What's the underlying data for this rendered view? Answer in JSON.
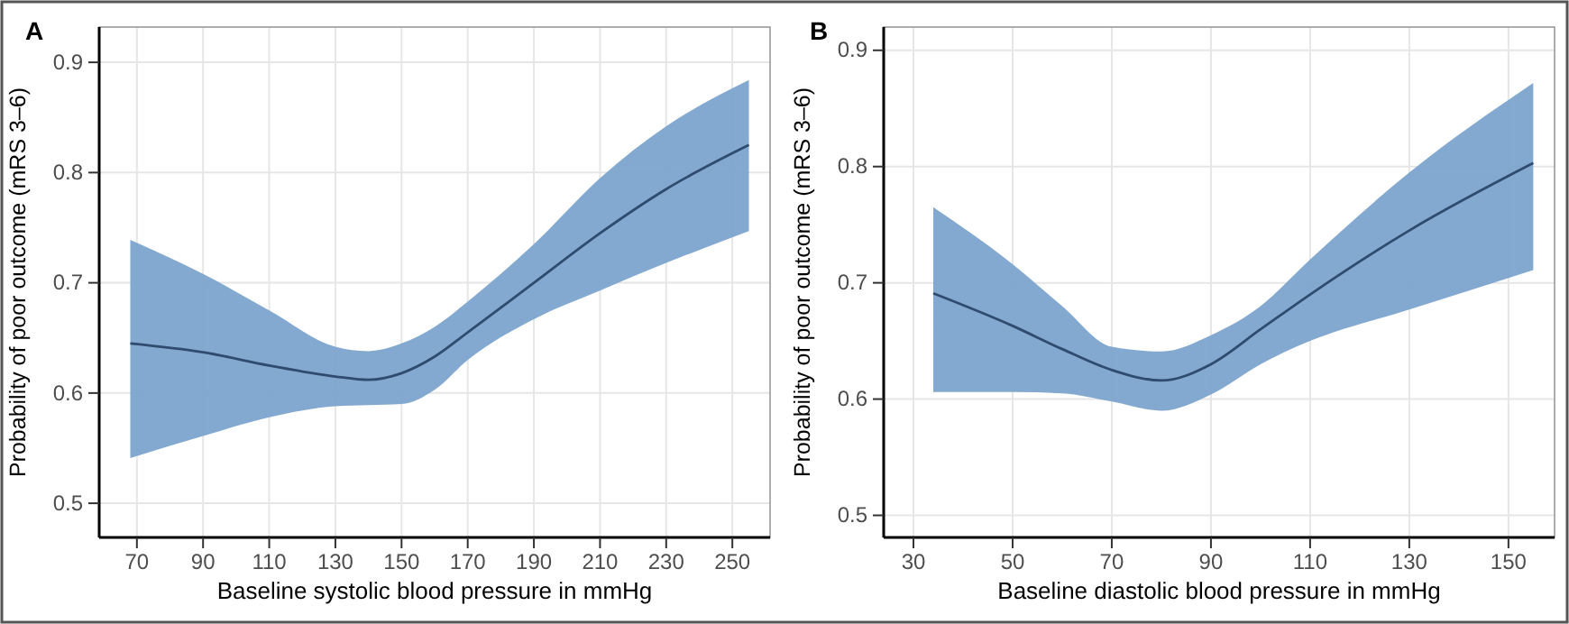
{
  "chart_data": [
    {
      "type": "line",
      "title": "A",
      "xlabel": "Baseline systolic blood pressure in mmHg",
      "ylabel": "Probability of poor outcome (mRS 3–6)",
      "x": [
        68,
        90,
        110,
        130,
        140,
        150,
        160,
        170,
        190,
        210,
        230,
        255
      ],
      "series": [
        {
          "color": "#2f4b6e",
          "values": [
            0.645,
            0.637,
            0.625,
            0.615,
            0.612,
            0.618,
            0.633,
            0.655,
            0.7,
            0.745,
            0.785,
            0.825
          ],
          "lower": [
            0.541,
            0.561,
            0.578,
            0.588,
            0.589,
            0.59,
            0.603,
            0.63,
            0.667,
            0.693,
            0.718,
            0.747
          ],
          "upper": [
            0.739,
            0.708,
            0.675,
            0.642,
            0.638,
            0.645,
            0.66,
            0.683,
            0.735,
            0.795,
            0.842,
            0.884
          ]
        }
      ],
      "xlim": [
        58.6,
        261.4
      ],
      "ylim": [
        0.469,
        0.932
      ],
      "xticks": [
        70,
        90,
        110,
        130,
        150,
        170,
        190,
        210,
        230,
        250
      ],
      "yticks": [
        0.5,
        0.6,
        0.7,
        0.8,
        0.9
      ],
      "grid": true,
      "marker": "none",
      "line_style": "solid"
    },
    {
      "type": "line",
      "title": "B",
      "xlabel": "Baseline diastolic blood pressure in mmHg",
      "ylabel": "Probability of poor outcome (mRS 3–6)",
      "x": [
        34,
        50,
        60,
        70,
        80,
        90,
        100,
        110,
        130,
        155
      ],
      "series": [
        {
          "color": "#2f4b6e",
          "values": [
            0.691,
            0.663,
            0.643,
            0.625,
            0.616,
            0.63,
            0.66,
            0.69,
            0.745,
            0.803
          ],
          "lower": [
            0.606,
            0.606,
            0.605,
            0.598,
            0.59,
            0.604,
            0.63,
            0.65,
            0.677,
            0.711
          ],
          "upper": [
            0.765,
            0.716,
            0.68,
            0.645,
            0.641,
            0.655,
            0.68,
            0.72,
            0.795,
            0.872
          ]
        }
      ],
      "xlim": [
        24,
        159.3
      ],
      "ylim": [
        0.481,
        0.92
      ],
      "xticks": [
        30,
        50,
        70,
        90,
        110,
        130,
        150
      ],
      "yticks": [
        0.5,
        0.6,
        0.7,
        0.8,
        0.9
      ],
      "grid": true,
      "marker": "none",
      "line_style": "solid"
    }
  ]
}
